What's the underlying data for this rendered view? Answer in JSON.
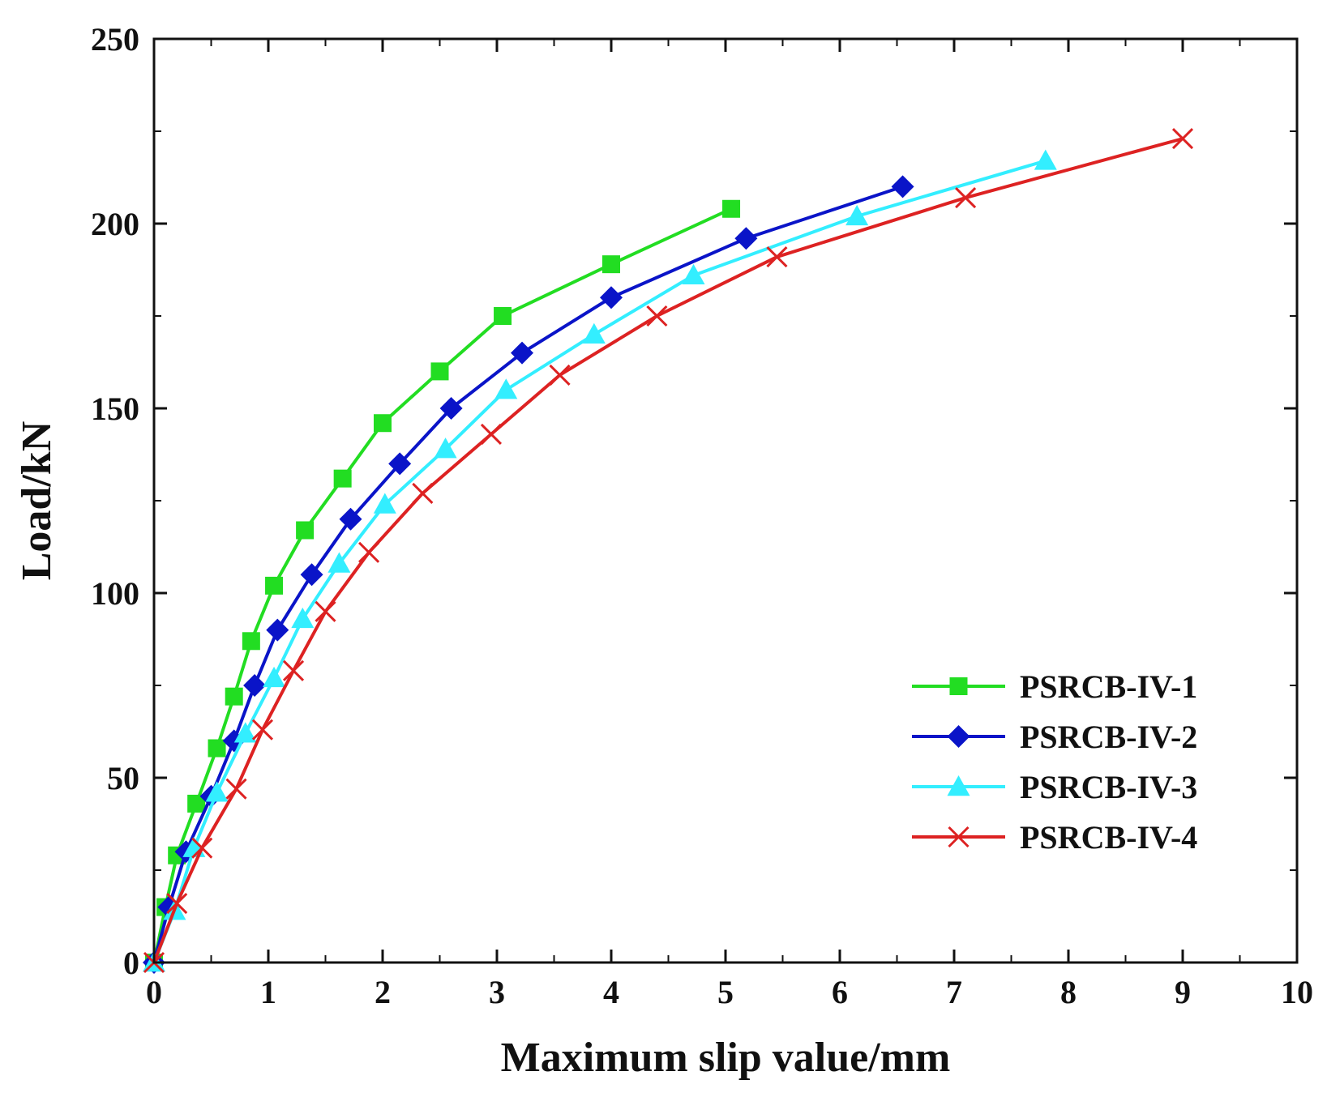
{
  "chart_data": {
    "type": "line",
    "title": "",
    "xlabel": "Maximum slip value/mm",
    "ylabel": "Load/kN",
    "xlim": [
      0,
      10
    ],
    "ylim": [
      0,
      250
    ],
    "xticks": [
      0,
      1,
      2,
      3,
      4,
      5,
      6,
      7,
      8,
      9,
      10
    ],
    "yticks": [
      0,
      50,
      100,
      150,
      200,
      250
    ],
    "grid": false,
    "legend_position": "lower-right",
    "series": [
      {
        "name": "PSRCB-IV-1",
        "color": "#22dd22",
        "marker": "square",
        "x": [
          0,
          0.1,
          0.2,
          0.37,
          0.55,
          0.7,
          0.85,
          1.05,
          1.32,
          1.65,
          2.0,
          2.5,
          3.05,
          4.0,
          5.05
        ],
        "y": [
          0,
          15,
          29,
          43,
          58,
          72,
          87,
          102,
          117,
          131,
          146,
          160,
          175,
          189,
          204
        ]
      },
      {
        "name": "PSRCB-IV-2",
        "color": "#0a14c8",
        "marker": "diamond",
        "x": [
          0,
          0.13,
          0.28,
          0.5,
          0.7,
          0.88,
          1.08,
          1.38,
          1.72,
          2.15,
          2.6,
          3.22,
          4.0,
          5.18,
          6.55
        ],
        "y": [
          0,
          15,
          30,
          45,
          60,
          75,
          90,
          105,
          120,
          135,
          150,
          165,
          180,
          196,
          210
        ]
      },
      {
        "name": "PSRCB-IV-3",
        "color": "#33eeff",
        "marker": "triangle",
        "x": [
          0,
          0.18,
          0.35,
          0.55,
          0.8,
          1.05,
          1.3,
          1.62,
          2.02,
          2.55,
          3.08,
          3.85,
          4.72,
          6.15,
          7.8
        ],
        "y": [
          0,
          14,
          31,
          46,
          62,
          77,
          93,
          108,
          124,
          139,
          155,
          170,
          186,
          202,
          217
        ]
      },
      {
        "name": "PSRCB-IV-4",
        "color": "#dd2222",
        "marker": "x",
        "x": [
          0,
          0.2,
          0.42,
          0.72,
          0.95,
          1.22,
          1.5,
          1.88,
          2.35,
          2.95,
          3.55,
          4.4,
          5.45,
          7.1,
          9.0
        ],
        "y": [
          0,
          16,
          31,
          47,
          63,
          79,
          95,
          111,
          127,
          143,
          159,
          175,
          191,
          207,
          223
        ]
      }
    ]
  }
}
